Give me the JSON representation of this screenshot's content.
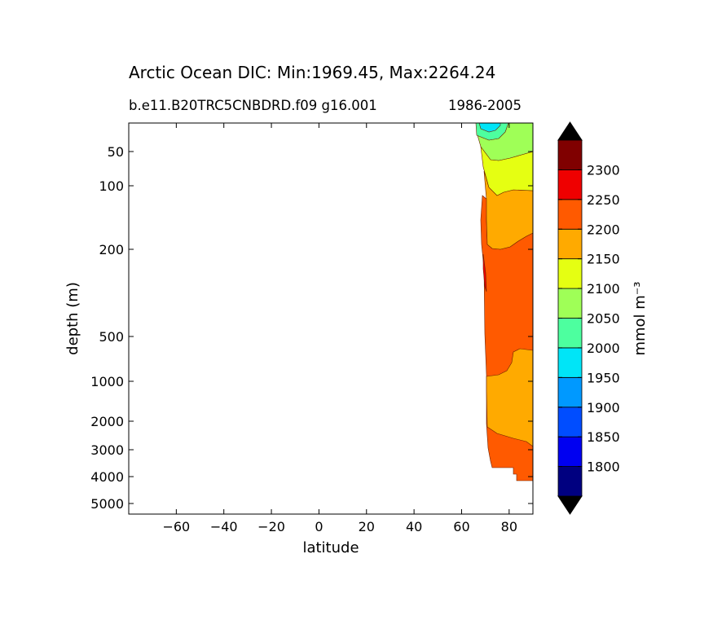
{
  "chart_data": {
    "type": "contour",
    "title": "Arctic Ocean DIC: Min:1969.45, Max:2264.24",
    "subtitle_left": "b.e11.B20TRC5CNBDRD.f09 g16.001",
    "subtitle_right": "1986-2005",
    "xlabel": "latitude",
    "ylabel": "depth (m)",
    "xlim": [
      -80,
      90
    ],
    "x_ticks": [
      -60,
      -40,
      -20,
      0,
      20,
      40,
      60,
      80
    ],
    "x_tick_labels": [
      "−60",
      "−40",
      "−20",
      "0",
      "20",
      "40",
      "60",
      "80"
    ],
    "y_scale": "nonlinear (depth, increasing downward)",
    "y_ticks": [
      50,
      100,
      200,
      500,
      1000,
      2000,
      3000,
      4000,
      5000
    ],
    "y_tick_labels": [
      "50",
      "100",
      "200",
      "500",
      "1000",
      "2000",
      "3000",
      "4000",
      "5000"
    ],
    "colorbar": {
      "label": "mmol m⁻³",
      "levels": [
        1800,
        1850,
        1900,
        1950,
        2000,
        2050,
        2100,
        2150,
        2200,
        2250,
        2300
      ],
      "tick_labels": [
        "1800",
        "1850",
        "1900",
        "1950",
        "2000",
        "2050",
        "2100",
        "2150",
        "2200",
        "2250",
        "2300"
      ],
      "colors": [
        "#000080",
        "#0000f1",
        "#004dff",
        "#0099ff",
        "#00e5f7",
        "#4dff9f",
        "#9fff57",
        "#e5ff12",
        "#ffaa00",
        "#ff5a00",
        "#ef0000",
        "#800000"
      ],
      "extend": "both",
      "extend_color": "#000000"
    },
    "regions": [
      {
        "range": "1950-2000",
        "depth": "surface",
        "lat": "~66-76"
      },
      {
        "range": "2000-2050",
        "depth": "0-50 m",
        "lat": "~67-90"
      },
      {
        "range": "2050-2100",
        "depth": "~20-70 m",
        "lat": "~68-90"
      },
      {
        "range": "2100-2150",
        "depth": "~60-150 m",
        "lat": "~68-90"
      },
      {
        "range": "2150-2200",
        "depth": "~100-300 m and ~800-3000 m",
        "lat": "~68-90"
      },
      {
        "range": "2200-2250",
        "depth": "~150-4000 m",
        "lat": "~68-90"
      },
      {
        "range": "2250-2300",
        "depth": "~250-350 m",
        "lat": "~69"
      }
    ]
  }
}
